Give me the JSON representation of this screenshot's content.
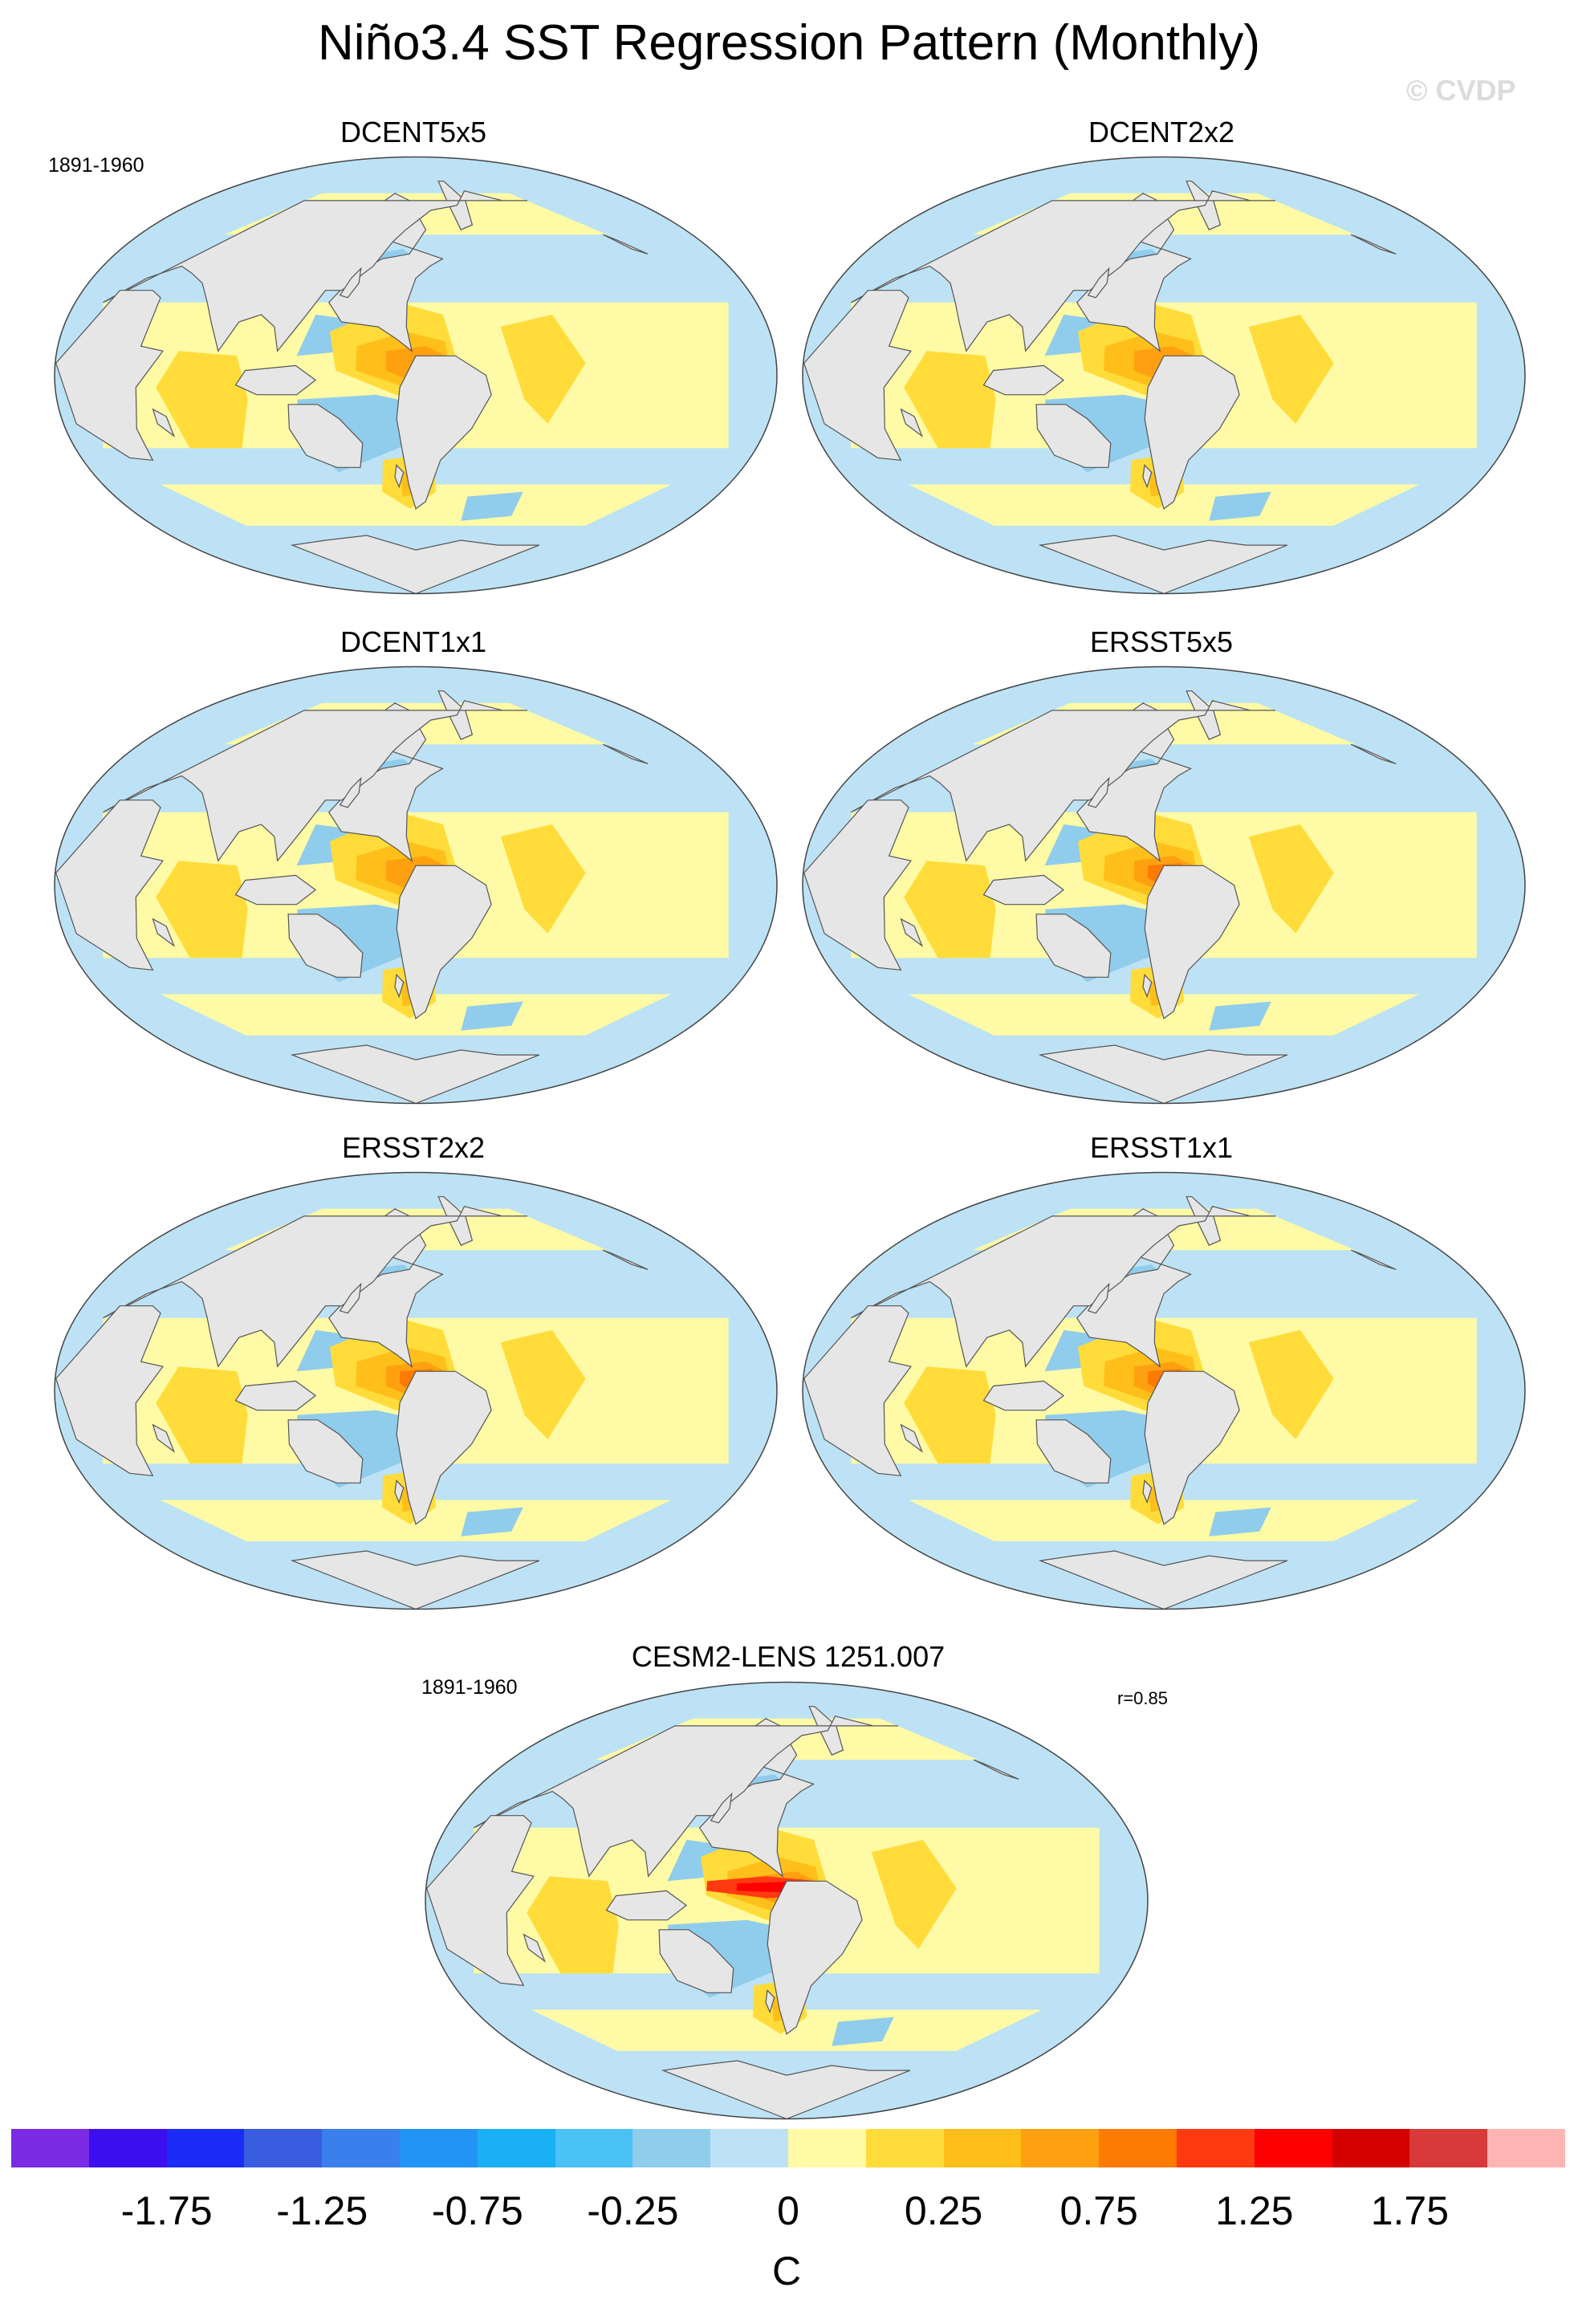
{
  "figure": {
    "title": "Niño3.4 SST Regression Pattern (Monthly)",
    "watermark": "© CVDP",
    "period_label": "1891-1960"
  },
  "panels": [
    {
      "name": "DCENT5x5",
      "period": "1891-1960"
    },
    {
      "name": "DCENT2x2"
    },
    {
      "name": "DCENT1x1"
    },
    {
      "name": "ERSST5x5"
    },
    {
      "name": "ERSST2x2"
    },
    {
      "name": "ERSST1x1"
    },
    {
      "name": "CESM2-LENS 1251.007",
      "period": "1891-1960",
      "r": "r=0.85"
    }
  ],
  "colorbar": {
    "units": "C",
    "colors": [
      "#7b2be3",
      "#3b0ff0",
      "#1a2cf5",
      "#3a5de0",
      "#3b7fec",
      "#2194f5",
      "#1ab0f5",
      "#4ac2f5",
      "#90ccec",
      "#bde2f5",
      "#fffaa5",
      "#ffdc3a",
      "#ffbf1a",
      "#ffa010",
      "#ff7a00",
      "#ff3a10",
      "#ff0000",
      "#d40000",
      "#d83a3a",
      "#ffb4b4"
    ],
    "tick_labels": [
      "-1.75",
      "-1.25",
      "-0.75",
      "-0.25",
      "0",
      "0.25",
      "0.75",
      "1.25",
      "1.75"
    ]
  },
  "style": {
    "land": "#e6e6e6",
    "coast": "#555555"
  }
}
